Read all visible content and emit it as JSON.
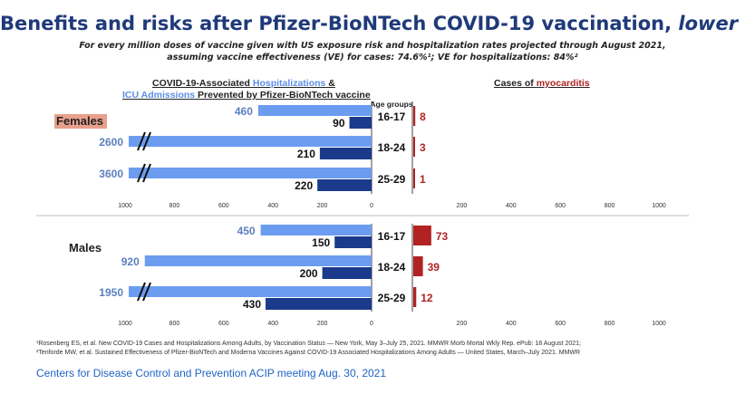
{
  "title_main": "Benefits and risks after Pfizer-BioNTech COVID-19 vaccination, ",
  "title_emph": "lower VE",
  "subtitle_line1": "For every million doses of vaccine given with US exposure risk and hospitalization rates projected through August 2021,",
  "subtitle_line2": "assuming vaccine effectiveness (VE) for cases: 74.6%¹; VE for hospitalizations: 84%²",
  "left_header": {
    "line1_a": "COVID-19-Associated ",
    "line1_hl": "Hospitalizations",
    "line1_b": " &",
    "line2_hl": "ICU Admissions",
    "line2_b": " Prevented by Pfizer-BioNTech vaccine"
  },
  "right_header": {
    "a": "Cases of ",
    "hl": "myocarditis"
  },
  "age_groups_label": "Age groups",
  "footnote1": "¹Rosenberg ES, et al. New COVID-19 Cases and Hospitalizations Among Adults, by Vaccination Status — New York, May 3–July 25, 2021. MMWR Morb Mortal Wkly Rep. ePub: 18 August 2021;",
  "footnote2": "²Tenforde MW, et al. Sustained Effectiveness of Pfizer-BioNTech and Moderna Vaccines Against COVID-19 Associated Hospitalizations Among Adults — United States, March–July 2021. MMWR",
  "credit": "Centers for Disease Control and Prevention ACIP meeting Aug. 30, 2021",
  "colors": {
    "hospitalizations": "#6b9cf0",
    "icu": "#1b3a8c",
    "myocarditis": "#b22222",
    "title": "#1f3a7a"
  },
  "chart_data": [
    {
      "type": "bar",
      "group": "Females",
      "categories": [
        "16-17",
        "18-24",
        "25-29"
      ],
      "series": [
        {
          "name": "Hospitalizations",
          "values": [
            460,
            2600,
            3600
          ]
        },
        {
          "name": "ICU Admissions",
          "values": [
            90,
            210,
            220
          ]
        },
        {
          "name": "myocarditis",
          "values": [
            8,
            3,
            1
          ]
        }
      ],
      "axis_break": [
        false,
        true,
        true
      ],
      "left_ticks": [
        "1000",
        "800",
        "600",
        "400",
        "200",
        "0"
      ],
      "right_ticks": [
        "200",
        "400",
        "600",
        "800",
        "1000"
      ]
    },
    {
      "type": "bar",
      "group": "Males",
      "categories": [
        "16-17",
        "18-24",
        "25-29"
      ],
      "series": [
        {
          "name": "Hospitalizations",
          "values": [
            450,
            920,
            1950
          ]
        },
        {
          "name": "ICU Admissions",
          "values": [
            150,
            200,
            430
          ]
        },
        {
          "name": "myocarditis",
          "values": [
            73,
            39,
            12
          ]
        }
      ],
      "axis_break": [
        false,
        false,
        true
      ],
      "left_ticks": [
        "1000",
        "800",
        "600",
        "400",
        "200",
        "0"
      ],
      "right_ticks": [
        "200",
        "400",
        "600",
        "800",
        "1000"
      ]
    }
  ]
}
